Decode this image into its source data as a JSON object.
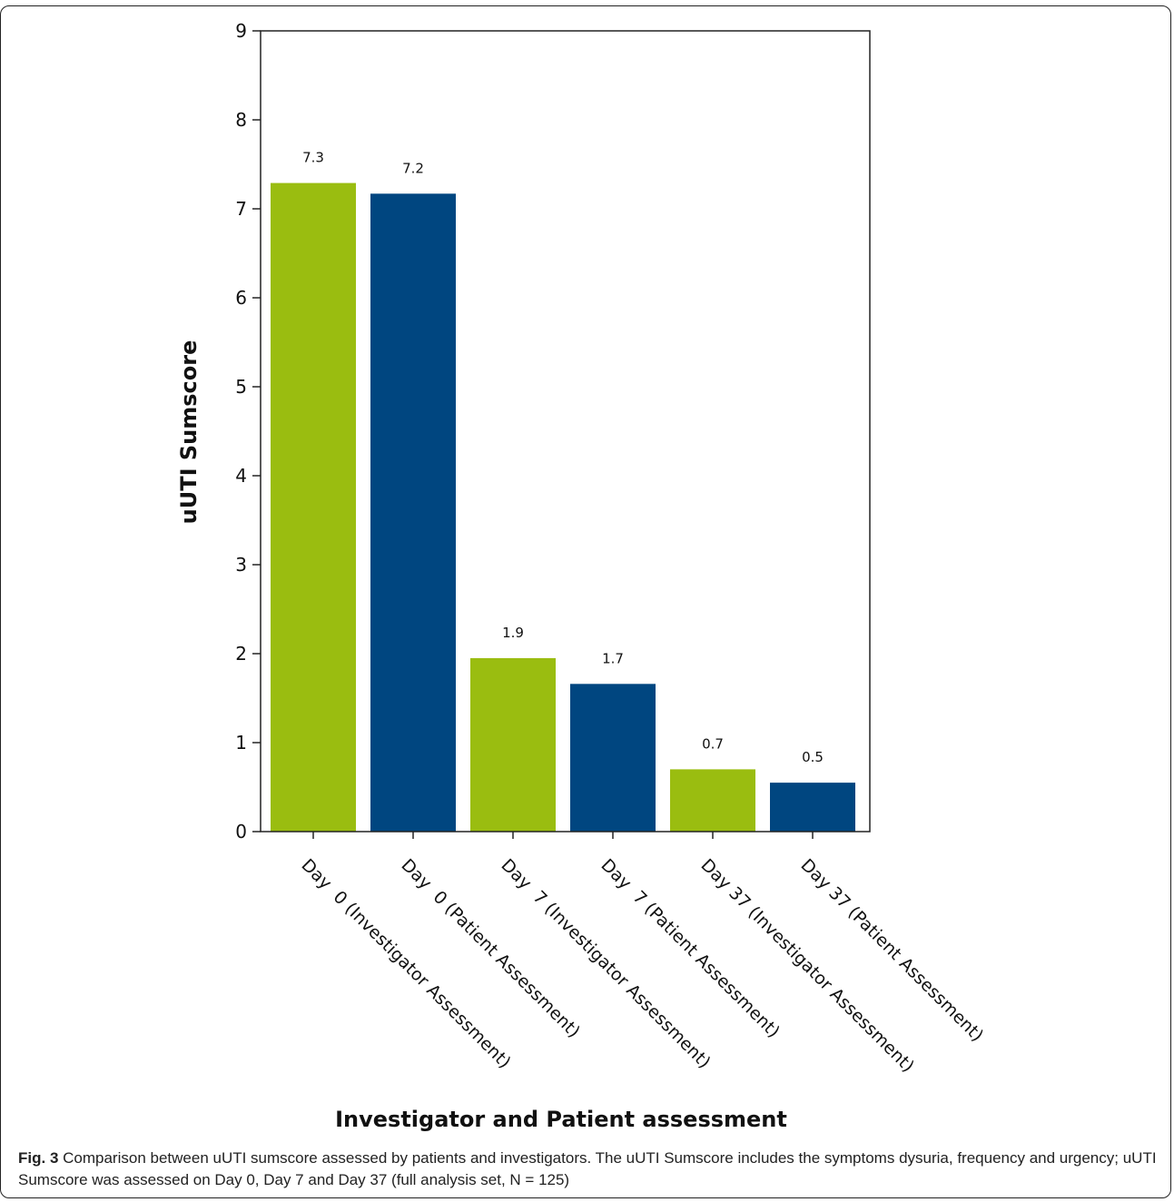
{
  "chart_data": {
    "type": "bar",
    "categories": [
      "Day  0 (Investigator Assessment)",
      "Day  0 (Patient Assessment)",
      "Day  7 (Investigator Assessment)",
      "Day  7 (Patient Assessment)",
      "Day 37 (Investigator Assessment)",
      "Day 37 (Patient Assessment)"
    ],
    "values": [
      7.3,
      7.2,
      1.9,
      1.7,
      0.7,
      0.5
    ],
    "bar_values": [
      7.29,
      7.17,
      1.95,
      1.66,
      0.7,
      0.55
    ],
    "data_labels": [
      "7.3",
      "7.2",
      "1.9",
      "1.7",
      "0.7",
      "0.5"
    ],
    "bar_colors": [
      "#9abd10",
      "#004680",
      "#9abd10",
      "#004680",
      "#9abd10",
      "#004680"
    ],
    "xlabel": "Investigator and Patient assessment",
    "ylabel": "uUTI Sumscore",
    "ylim": [
      0,
      9
    ],
    "yticks": [
      0,
      1,
      2,
      3,
      4,
      5,
      6,
      7,
      8,
      9
    ],
    "grid": false
  },
  "caption": {
    "label": "Fig. 3",
    "text": " Comparison between uUTI sumscore assessed by patients and investigators. The uUTI Sumscore includes the symptoms dysuria, frequency and urgency; uUTI Sumscore was assessed on Day 0, Day 7 and Day 37 (full analysis set, N = 125)"
  }
}
